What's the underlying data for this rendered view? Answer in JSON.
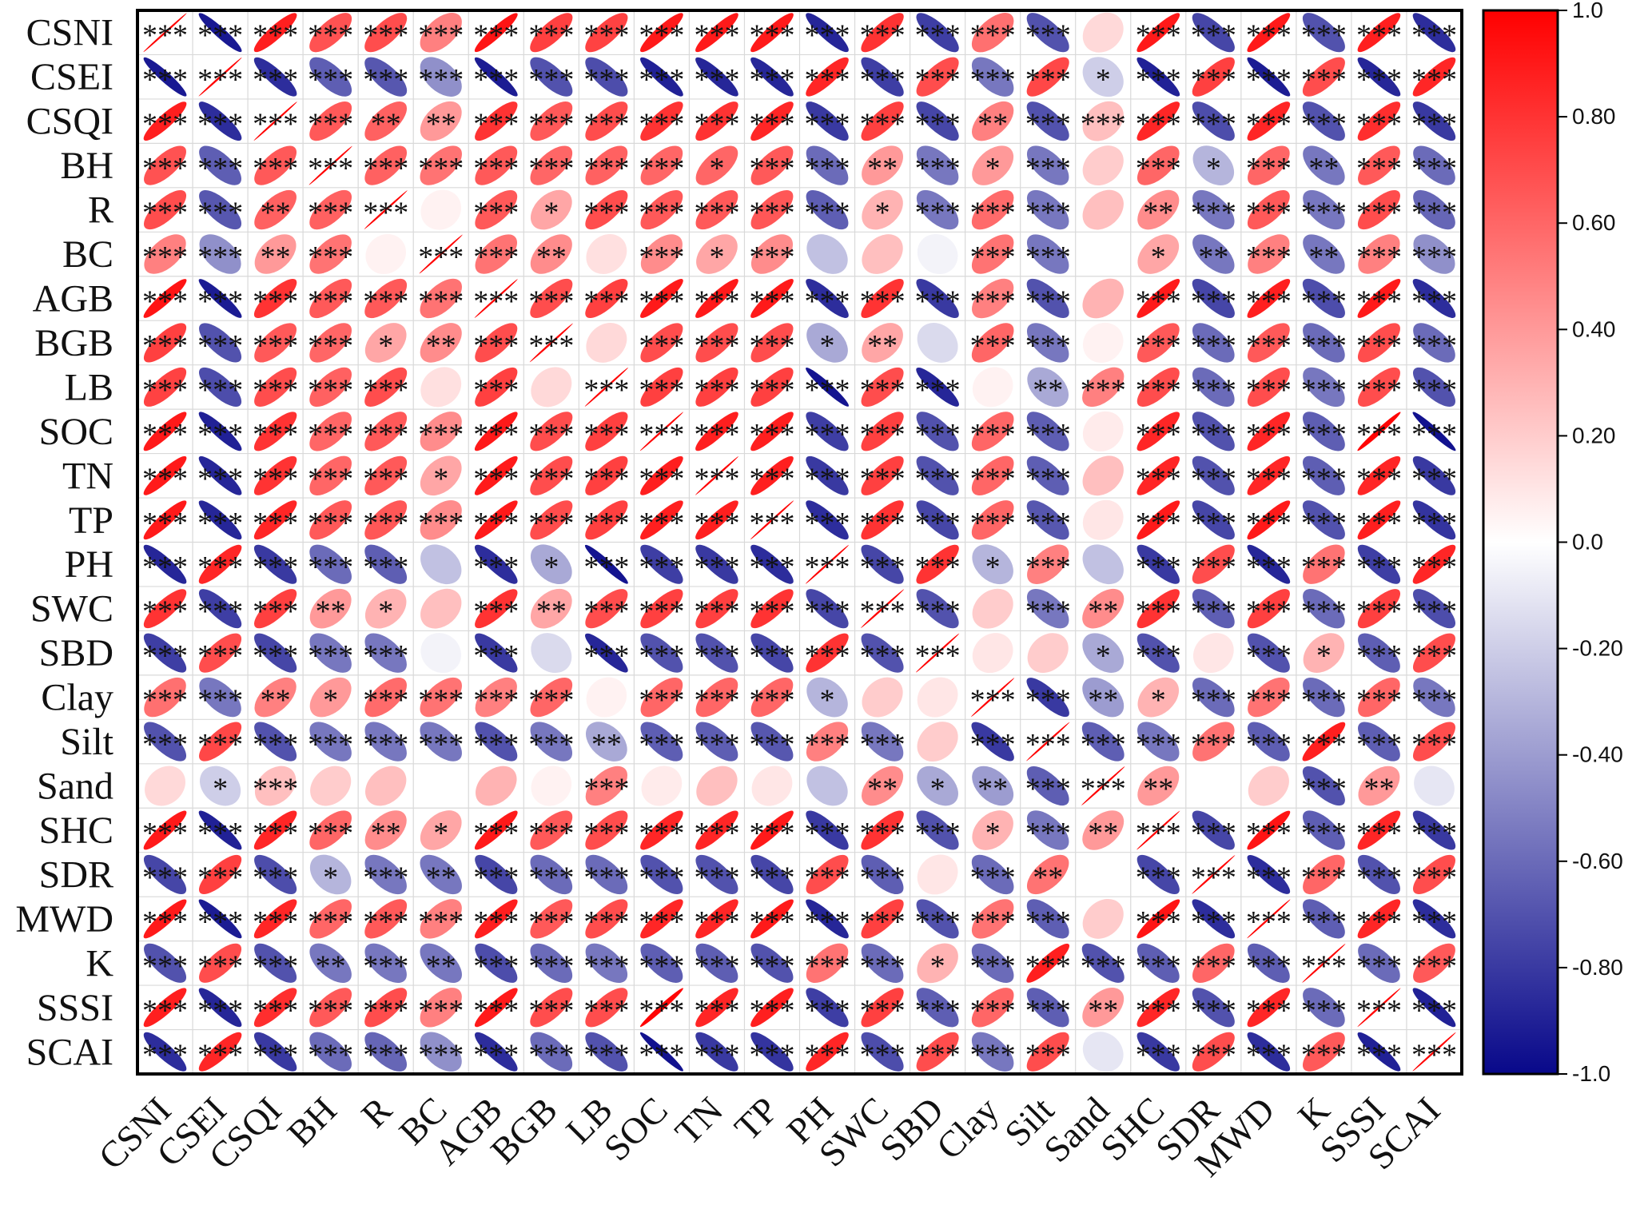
{
  "chart_data": {
    "type": "heatmap",
    "variables": [
      "CSNI",
      "CSEI",
      "CSQI",
      "BH",
      "R",
      "BC",
      "AGB",
      "BGB",
      "LB",
      "SOC",
      "TN",
      "TP",
      "PH",
      "SWC",
      "SBD",
      "Clay",
      "Silt",
      "Sand",
      "SHC",
      "SDR",
      "MWD",
      "K",
      "SSSI",
      "SCAI"
    ],
    "colorbar": {
      "range": [
        -1.0,
        1.0
      ],
      "ticks": [
        "1.0",
        "0.80",
        "0.60",
        "0.40",
        "0.20",
        "0.0",
        "-0.20",
        "-0.40",
        "-0.60",
        "-0.80",
        "-1.0"
      ],
      "colors": {
        "low": "#08088a",
        "mid": "#ffffff",
        "high": "#ff0000"
      }
    },
    "matrix": [
      [
        1.0,
        -0.93,
        0.88,
        0.68,
        0.7,
        0.5,
        0.92,
        0.75,
        0.74,
        0.9,
        0.9,
        0.9,
        -0.88,
        0.8,
        -0.78,
        0.56,
        -0.7,
        0.15,
        0.9,
        -0.75,
        0.9,
        -0.7,
        0.88,
        -0.85
      ],
      [
        -0.93,
        1.0,
        -0.85,
        -0.65,
        -0.68,
        -0.45,
        -0.92,
        -0.7,
        -0.72,
        -0.9,
        -0.88,
        -0.88,
        0.85,
        -0.78,
        0.7,
        -0.55,
        0.72,
        -0.2,
        -0.9,
        0.75,
        -0.92,
        0.7,
        -0.88,
        0.85
      ],
      [
        0.88,
        -0.85,
        1.0,
        0.65,
        0.62,
        0.4,
        0.8,
        0.65,
        0.7,
        0.8,
        0.8,
        0.85,
        -0.8,
        0.75,
        -0.75,
        0.5,
        -0.7,
        0.25,
        0.85,
        -0.72,
        0.85,
        -0.7,
        0.82,
        -0.8
      ],
      [
        0.68,
        -0.65,
        0.65,
        1.0,
        0.62,
        0.55,
        0.65,
        0.6,
        0.62,
        0.6,
        0.6,
        0.65,
        -0.6,
        0.4,
        -0.55,
        0.4,
        -0.55,
        0.2,
        0.6,
        -0.3,
        0.6,
        -0.55,
        0.65,
        -0.6
      ],
      [
        0.7,
        -0.68,
        0.62,
        0.62,
        1.0,
        0.05,
        0.65,
        0.35,
        0.7,
        0.65,
        0.65,
        0.66,
        -0.65,
        0.3,
        -0.55,
        0.58,
        -0.55,
        0.25,
        0.45,
        -0.55,
        0.65,
        -0.55,
        0.7,
        -0.62
      ],
      [
        0.5,
        -0.45,
        0.4,
        0.55,
        0.05,
        1.0,
        0.55,
        0.45,
        0.12,
        0.45,
        0.35,
        0.45,
        -0.25,
        0.25,
        -0.05,
        0.55,
        -0.55,
        0.0,
        0.35,
        -0.55,
        0.5,
        -0.55,
        0.5,
        -0.45
      ],
      [
        0.92,
        -0.92,
        0.8,
        0.65,
        0.65,
        0.55,
        1.0,
        0.7,
        0.75,
        0.9,
        0.9,
        0.9,
        -0.85,
        0.8,
        -0.8,
        0.5,
        -0.7,
        0.3,
        0.9,
        -0.75,
        0.88,
        -0.72,
        0.9,
        -0.85
      ],
      [
        0.75,
        -0.7,
        0.65,
        0.6,
        0.35,
        0.45,
        0.7,
        1.0,
        0.15,
        0.7,
        0.7,
        0.7,
        -0.35,
        0.35,
        -0.15,
        0.6,
        -0.55,
        0.05,
        0.65,
        -0.6,
        0.65,
        -0.6,
        0.7,
        -0.6
      ],
      [
        0.74,
        -0.72,
        0.7,
        0.62,
        0.7,
        0.12,
        0.75,
        0.15,
        1.0,
        0.75,
        0.75,
        0.75,
        -0.95,
        0.7,
        -0.88,
        0.05,
        -0.35,
        0.5,
        0.7,
        -0.6,
        0.7,
        -0.55,
        0.7,
        -0.7
      ],
      [
        0.9,
        -0.9,
        0.8,
        0.6,
        0.65,
        0.45,
        0.9,
        0.7,
        0.75,
        1.0,
        0.88,
        0.88,
        -0.78,
        0.75,
        -0.7,
        0.6,
        -0.65,
        0.08,
        0.85,
        -0.7,
        0.85,
        -0.65,
        0.98,
        -0.96
      ],
      [
        0.9,
        -0.88,
        0.8,
        0.6,
        0.65,
        0.35,
        0.9,
        0.7,
        0.75,
        0.88,
        1.0,
        0.88,
        -0.8,
        0.75,
        -0.7,
        0.6,
        -0.65,
        0.25,
        0.85,
        -0.7,
        0.85,
        -0.65,
        0.85,
        -0.8
      ],
      [
        0.9,
        -0.88,
        0.85,
        0.65,
        0.66,
        0.45,
        0.9,
        0.7,
        0.75,
        0.88,
        0.88,
        1.0,
        -0.85,
        0.8,
        -0.75,
        0.6,
        -0.68,
        0.1,
        0.9,
        -0.75,
        0.9,
        -0.7,
        0.88,
        -0.82
      ],
      [
        -0.88,
        0.85,
        -0.8,
        -0.6,
        -0.65,
        -0.25,
        -0.85,
        -0.35,
        -0.95,
        -0.78,
        -0.8,
        -0.85,
        1.0,
        -0.75,
        0.8,
        -0.3,
        0.5,
        -0.25,
        -0.8,
        0.7,
        -0.88,
        0.55,
        -0.78,
        0.85
      ],
      [
        0.8,
        -0.78,
        0.75,
        0.4,
        0.3,
        0.25,
        0.8,
        0.35,
        0.7,
        0.75,
        0.75,
        0.8,
        -0.75,
        1.0,
        -0.7,
        0.2,
        -0.55,
        0.45,
        0.8,
        -0.65,
        0.75,
        -0.6,
        0.75,
        -0.72
      ],
      [
        -0.78,
        0.7,
        -0.75,
        -0.55,
        -0.55,
        -0.05,
        -0.8,
        -0.15,
        -0.88,
        -0.7,
        -0.7,
        -0.75,
        0.8,
        -0.7,
        1.0,
        0.1,
        0.2,
        -0.35,
        -0.7,
        0.1,
        -0.7,
        0.3,
        -0.65,
        0.7
      ],
      [
        0.56,
        -0.55,
        0.5,
        0.4,
        0.58,
        0.55,
        0.5,
        0.6,
        0.05,
        0.6,
        0.6,
        0.6,
        -0.3,
        0.2,
        0.1,
        1.0,
        -0.8,
        -0.4,
        0.3,
        -0.6,
        0.55,
        -0.6,
        0.6,
        -0.55
      ],
      [
        -0.7,
        0.72,
        -0.7,
        -0.55,
        -0.55,
        -0.55,
        -0.7,
        -0.55,
        -0.35,
        -0.65,
        -0.65,
        -0.68,
        0.5,
        -0.55,
        0.2,
        -0.8,
        1.0,
        -0.65,
        -0.55,
        0.55,
        -0.65,
        0.88,
        -0.65,
        0.7
      ],
      [
        0.15,
        -0.2,
        0.25,
        0.2,
        0.25,
        0.0,
        0.3,
        0.05,
        0.5,
        0.08,
        0.25,
        0.1,
        -0.25,
        0.45,
        -0.35,
        -0.4,
        -0.65,
        1.0,
        0.4,
        0.0,
        0.2,
        -0.7,
        0.4,
        -0.1
      ],
      [
        0.9,
        -0.9,
        0.85,
        0.6,
        0.45,
        0.35,
        0.9,
        0.65,
        0.7,
        0.85,
        0.85,
        0.9,
        -0.8,
        0.8,
        -0.7,
        0.3,
        -0.55,
        0.4,
        1.0,
        -0.75,
        0.92,
        -0.65,
        0.85,
        -0.8
      ],
      [
        -0.75,
        0.75,
        -0.72,
        -0.3,
        -0.55,
        -0.55,
        -0.75,
        -0.6,
        -0.6,
        -0.7,
        -0.7,
        -0.75,
        0.7,
        -0.65,
        0.1,
        -0.6,
        0.55,
        0.0,
        -0.75,
        1.0,
        -0.85,
        0.6,
        -0.7,
        0.7
      ],
      [
        0.9,
        -0.92,
        0.85,
        0.6,
        0.65,
        0.5,
        0.88,
        0.65,
        0.7,
        0.85,
        0.85,
        0.9,
        -0.88,
        0.75,
        -0.7,
        0.55,
        -0.65,
        0.2,
        0.92,
        -0.85,
        1.0,
        -0.65,
        0.85,
        -0.85
      ],
      [
        -0.7,
        0.7,
        -0.7,
        -0.55,
        -0.55,
        -0.55,
        -0.72,
        -0.6,
        -0.55,
        -0.65,
        -0.65,
        -0.7,
        0.55,
        -0.6,
        0.3,
        -0.6,
        0.88,
        -0.7,
        -0.65,
        0.6,
        -0.65,
        1.0,
        -0.6,
        0.65
      ],
      [
        0.88,
        -0.88,
        0.82,
        0.65,
        0.7,
        0.5,
        0.9,
        0.7,
        0.7,
        0.98,
        0.85,
        0.88,
        -0.78,
        0.75,
        -0.65,
        0.6,
        -0.65,
        0.4,
        0.85,
        -0.7,
        0.85,
        -0.6,
        1.0,
        -0.9
      ],
      [
        -0.85,
        0.85,
        -0.8,
        -0.6,
        -0.62,
        -0.45,
        -0.85,
        -0.6,
        -0.7,
        -0.96,
        -0.8,
        -0.82,
        0.85,
        -0.72,
        0.7,
        -0.55,
        0.7,
        -0.1,
        -0.8,
        0.7,
        -0.85,
        0.65,
        -0.9,
        1.0
      ]
    ],
    "significance": [
      [
        "***",
        "***",
        "***",
        "***",
        "***",
        "***",
        "***",
        "***",
        "***",
        "***",
        "***",
        "***",
        "***",
        "***",
        "***",
        "***",
        "***",
        "",
        "***",
        "***",
        "***",
        "***",
        "***",
        "***"
      ],
      [
        "***",
        "***",
        "***",
        "***",
        "***",
        "***",
        "***",
        "***",
        "***",
        "***",
        "***",
        "***",
        "***",
        "***",
        "***",
        "***",
        "***",
        "*",
        "***",
        "***",
        "***",
        "***",
        "***",
        "***"
      ],
      [
        "***",
        "***",
        "***",
        "***",
        "**",
        "**",
        "***",
        "***",
        "***",
        "***",
        "***",
        "***",
        "***",
        "***",
        "***",
        "**",
        "***",
        "***",
        "***",
        "***",
        "***",
        "***",
        "***",
        "***"
      ],
      [
        "***",
        "***",
        "***",
        "***",
        "***",
        "***",
        "***",
        "***",
        "***",
        "***",
        "*",
        "***",
        "***",
        "**",
        "***",
        "*",
        "***",
        "",
        "***",
        "*",
        "***",
        "**",
        "***",
        "***"
      ],
      [
        "***",
        "***",
        "**",
        "***",
        "***",
        "",
        "***",
        "*",
        "***",
        "***",
        "***",
        "***",
        "***",
        "*",
        "***",
        "***",
        "***",
        "",
        "**",
        "***",
        "***",
        "***",
        "***",
        "***"
      ],
      [
        "***",
        "***",
        "**",
        "***",
        "",
        "***",
        "***",
        "**",
        "",
        "***",
        "*",
        "***",
        "",
        "",
        "",
        "***",
        "***",
        "",
        "*",
        "**",
        "***",
        "**",
        "***",
        "***"
      ],
      [
        "***",
        "***",
        "***",
        "***",
        "***",
        "***",
        "***",
        "***",
        "***",
        "***",
        "***",
        "***",
        "***",
        "***",
        "***",
        "***",
        "***",
        "",
        "***",
        "***",
        "***",
        "***",
        "***",
        "***"
      ],
      [
        "***",
        "***",
        "***",
        "***",
        "*",
        "**",
        "***",
        "***",
        "",
        "***",
        "***",
        "***",
        "*",
        "**",
        "",
        "***",
        "***",
        "",
        "***",
        "***",
        "***",
        "***",
        "***",
        "***"
      ],
      [
        "***",
        "***",
        "***",
        "***",
        "***",
        "",
        "***",
        "",
        "***",
        "***",
        "***",
        "***",
        "***",
        "***",
        "***",
        "",
        "**",
        "***",
        "***",
        "***",
        "***",
        "***",
        "***",
        "***"
      ],
      [
        "***",
        "***",
        "***",
        "***",
        "***",
        "***",
        "***",
        "***",
        "***",
        "***",
        "***",
        "***",
        "***",
        "***",
        "***",
        "***",
        "***",
        "",
        "***",
        "***",
        "***",
        "***",
        "***",
        "***"
      ],
      [
        "***",
        "***",
        "***",
        "***",
        "***",
        "*",
        "***",
        "***",
        "***",
        "***",
        "***",
        "***",
        "***",
        "***",
        "***",
        "***",
        "***",
        "",
        "***",
        "***",
        "***",
        "***",
        "***",
        "***"
      ],
      [
        "***",
        "***",
        "***",
        "***",
        "***",
        "***",
        "***",
        "***",
        "***",
        "***",
        "***",
        "***",
        "***",
        "***",
        "***",
        "***",
        "***",
        "",
        "***",
        "***",
        "***",
        "***",
        "***",
        "***"
      ],
      [
        "***",
        "***",
        "***",
        "***",
        "***",
        "",
        "***",
        "*",
        "***",
        "***",
        "***",
        "***",
        "***",
        "***",
        "***",
        "*",
        "***",
        "",
        "***",
        "***",
        "***",
        "***",
        "***",
        "***"
      ],
      [
        "***",
        "***",
        "***",
        "**",
        "*",
        "",
        "***",
        "**",
        "***",
        "***",
        "***",
        "***",
        "***",
        "***",
        "***",
        "",
        "***",
        "**",
        "***",
        "***",
        "***",
        "***",
        "***",
        "***"
      ],
      [
        "***",
        "***",
        "***",
        "***",
        "***",
        "",
        "***",
        "",
        "***",
        "***",
        "***",
        "***",
        "***",
        "***",
        "***",
        "",
        "",
        "*",
        "***",
        "",
        "***",
        "*",
        "***",
        "***"
      ],
      [
        "***",
        "***",
        "**",
        "*",
        "***",
        "***",
        "***",
        "***",
        "",
        "***",
        "***",
        "***",
        "*",
        "",
        "",
        "***",
        "***",
        "**",
        "*",
        "***",
        "***",
        "***",
        "***",
        "***"
      ],
      [
        "***",
        "***",
        "***",
        "***",
        "***",
        "***",
        "***",
        "***",
        "**",
        "***",
        "***",
        "***",
        "***",
        "***",
        "",
        "***",
        "***",
        "***",
        "***",
        "***",
        "***",
        "***",
        "***",
        "***"
      ],
      [
        "",
        "*",
        "***",
        "",
        "",
        "",
        "",
        "",
        "***",
        "",
        "",
        "",
        "",
        "**",
        "*",
        "**",
        "***",
        "***",
        "**",
        "",
        "",
        "***",
        "**",
        ""
      ],
      [
        "***",
        "***",
        "***",
        "***",
        "**",
        "*",
        "***",
        "***",
        "***",
        "***",
        "***",
        "***",
        "***",
        "***",
        "***",
        "*",
        "***",
        "**",
        "***",
        "***",
        "***",
        "***",
        "***",
        "***"
      ],
      [
        "***",
        "***",
        "***",
        "*",
        "***",
        "**",
        "***",
        "***",
        "***",
        "***",
        "***",
        "***",
        "***",
        "***",
        "",
        "***",
        "**",
        "",
        "***",
        "***",
        "***",
        "***",
        "***",
        "***"
      ],
      [
        "***",
        "***",
        "***",
        "***",
        "***",
        "***",
        "***",
        "***",
        "***",
        "***",
        "***",
        "***",
        "***",
        "***",
        "***",
        "***",
        "***",
        "",
        "***",
        "***",
        "***",
        "***",
        "***",
        "***"
      ],
      [
        "***",
        "***",
        "***",
        "**",
        "***",
        "**",
        "***",
        "***",
        "***",
        "***",
        "***",
        "***",
        "***",
        "***",
        "*",
        "***",
        "***",
        "***",
        "***",
        "***",
        "***",
        "***",
        "***",
        "***"
      ],
      [
        "***",
        "***",
        "***",
        "***",
        "***",
        "***",
        "***",
        "***",
        "***",
        "***",
        "***",
        "***",
        "***",
        "***",
        "***",
        "***",
        "***",
        "**",
        "***",
        "***",
        "***",
        "***",
        "***",
        "***"
      ],
      [
        "***",
        "***",
        "***",
        "***",
        "***",
        "***",
        "***",
        "***",
        "***",
        "***",
        "***",
        "***",
        "***",
        "***",
        "***",
        "***",
        "***",
        "",
        "***",
        "***",
        "***",
        "***",
        "***",
        "***"
      ]
    ]
  }
}
